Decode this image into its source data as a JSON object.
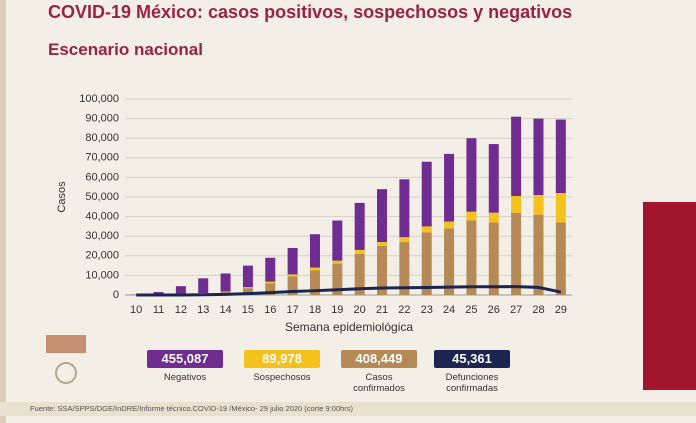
{
  "header": {
    "title": "COVID-19 México: casos positivos, sospechosos y negativos",
    "subtitle": "Escenario nacional"
  },
  "chart_data": {
    "type": "bar",
    "stacked": true,
    "grid": true,
    "y_label": "Casos",
    "x_label": "Semana epidemiológica",
    "categories": [
      "10",
      "11",
      "12",
      "13",
      "14",
      "15",
      "16",
      "17",
      "18",
      "19",
      "20",
      "21",
      "22",
      "23",
      "24",
      "25",
      "26",
      "27",
      "28",
      "29"
    ],
    "ylim": [
      0,
      100000
    ],
    "yticks": [
      0,
      {
        "value": 10000,
        "label": "10,000"
      },
      {
        "value": 20000,
        "label": "20,000"
      },
      {
        "value": 30000,
        "label": "30,000"
      },
      {
        "value": 40000,
        "label": "40,000"
      },
      {
        "value": 50000,
        "label": "50,000"
      },
      {
        "value": 60000,
        "label": "60,000"
      },
      {
        "value": 70000,
        "label": "70,000"
      },
      {
        "value": 80000,
        "label": "80,000"
      },
      {
        "value": 90000,
        "label": "90,000"
      },
      {
        "value": 100000,
        "label": "100,000"
      }
    ],
    "series": [
      {
        "name": "Negativos",
        "color": "#6f2c91",
        "values": [
          150,
          1350,
          4100,
          7500,
          9200,
          11000,
          12200,
          13500,
          17000,
          20500,
          24000,
          27000,
          29500,
          33000,
          34500,
          37500,
          35000,
          40500,
          39000,
          37500
        ]
      },
      {
        "name": "Sospechosos",
        "color": "#f5c11c",
        "values": [
          20,
          50,
          100,
          200,
          300,
          500,
          800,
          1000,
          1500,
          1500,
          2000,
          2000,
          2500,
          3000,
          3500,
          4500,
          5000,
          8500,
          10000,
          15000
        ]
      },
      {
        "name": "Casos confirmados",
        "color": "#b58a57",
        "values": [
          30,
          100,
          300,
          800,
          1500,
          3500,
          6000,
          9500,
          12500,
          16000,
          21000,
          25000,
          27000,
          32000,
          34000,
          38000,
          37000,
          42000,
          41000,
          37000
        ]
      },
      {
        "name": "Defunciones confirmadas",
        "color": "#1b2550",
        "type": "line",
        "values": [
          0,
          5,
          20,
          100,
          300,
          700,
          1200,
          1800,
          2200,
          2700,
          3200,
          3600,
          3700,
          3800,
          4000,
          4200,
          4200,
          4300,
          3900,
          1500
        ]
      }
    ]
  },
  "summary_totals": [
    "455,087",
    "89,978",
    "408,449",
    "45,361"
  ],
  "footer": "Fuente: SSA/SPPS/DGE/InDRE/Informe técnico.COVID-19 /México- 29 julio 2020 (corte 9:00hrs)"
}
